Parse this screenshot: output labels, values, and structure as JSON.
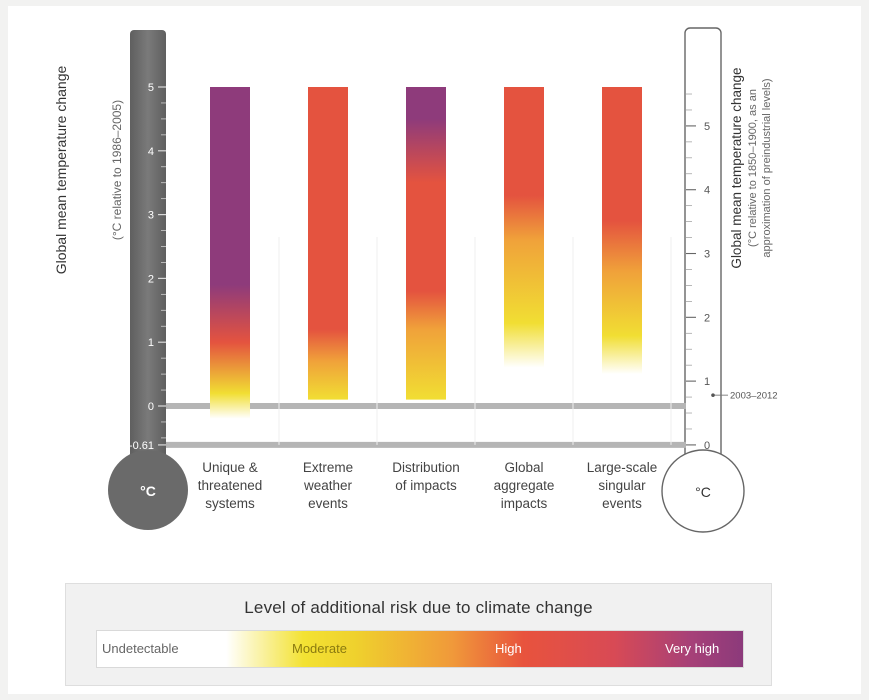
{
  "chart_data": {
    "type": "bar",
    "categories": [
      "Unique & threatened systems",
      "Extreme weather events",
      "Distribution of impacts",
      "Global aggregate impacts",
      "Large-scale singular events"
    ],
    "category_lines": [
      [
        "Unique &",
        "threatened",
        "systems"
      ],
      [
        "Extreme",
        "weather",
        "events"
      ],
      [
        "Distribution",
        "of impacts"
      ],
      [
        "Global",
        "aggregate",
        "impacts"
      ],
      [
        "Large-scale",
        "singular",
        "events"
      ]
    ],
    "bars_y_left": [
      {
        "from": -0.2,
        "to": 5.0,
        "stops": [
          [
            -0.2,
            "undetectable"
          ],
          [
            0.2,
            "moderate"
          ],
          [
            1.0,
            "high"
          ],
          [
            1.9,
            "very_high"
          ],
          [
            5.0,
            "very_high"
          ]
        ]
      },
      {
        "from": 0.1,
        "to": 5.0,
        "stops": [
          [
            0.1,
            "moderate"
          ],
          [
            0.7,
            "moderate_high"
          ],
          [
            1.2,
            "high"
          ],
          [
            5.0,
            "high"
          ]
        ]
      },
      {
        "from": 0.1,
        "to": 5.0,
        "stops": [
          [
            0.1,
            "moderate"
          ],
          [
            1.2,
            "moderate_high"
          ],
          [
            1.8,
            "high"
          ],
          [
            3.5,
            "high"
          ],
          [
            4.5,
            "very_high"
          ],
          [
            5.0,
            "very_high"
          ]
        ]
      },
      {
        "from": 0.6,
        "to": 5.0,
        "stops": [
          [
            0.6,
            "undetectable"
          ],
          [
            1.3,
            "moderate"
          ],
          [
            2.6,
            "moderate_high"
          ],
          [
            3.3,
            "high"
          ],
          [
            5.0,
            "high"
          ]
        ]
      },
      {
        "from": 0.5,
        "to": 5.0,
        "stops": [
          [
            0.5,
            "undetectable"
          ],
          [
            1.1,
            "moderate"
          ],
          [
            2.1,
            "moderate_high"
          ],
          [
            2.9,
            "high"
          ],
          [
            5.0,
            "high"
          ]
        ]
      }
    ],
    "left_axis": {
      "title": "Global mean temperature change",
      "subtitle": "(°C relative to 1986–2005)",
      "ticks": [
        5,
        4,
        3,
        2,
        1,
        0,
        -0.61
      ],
      "tick_labels": [
        "5",
        "4",
        "3",
        "2",
        "1",
        "0",
        "-0.61"
      ],
      "range": [
        -0.61,
        5.0
      ]
    },
    "right_axis": {
      "title": "Global mean temperature change",
      "subtitle_line1": "(°C relative to 1850–1900, as an",
      "subtitle_line2": "approximation of preindustrial levels)",
      "ticks": [
        5,
        4,
        3,
        2,
        1,
        0
      ],
      "tick_labels": [
        "5",
        "4",
        "3",
        "2",
        "1",
        "0"
      ],
      "offset_from_left": 0.61,
      "annotation": {
        "value": 0.78,
        "label": "2003–2012"
      }
    },
    "reference_lines_left": [
      0,
      -0.61
    ],
    "unit_bulb_label": "°C"
  },
  "legend": {
    "title": "Level of additional risk due to climate change",
    "levels": [
      "Undetectable",
      "Moderate",
      "High",
      "Very high"
    ]
  },
  "colors": {
    "undetectable": "#ffffff",
    "moderate": "#f1de33",
    "moderate_high": "#f0a23a",
    "high": "#e4533f",
    "very_high": "#8e3b7b",
    "thermometer_left": "#6d6d6d",
    "reference_line": "#b5b5b5"
  }
}
